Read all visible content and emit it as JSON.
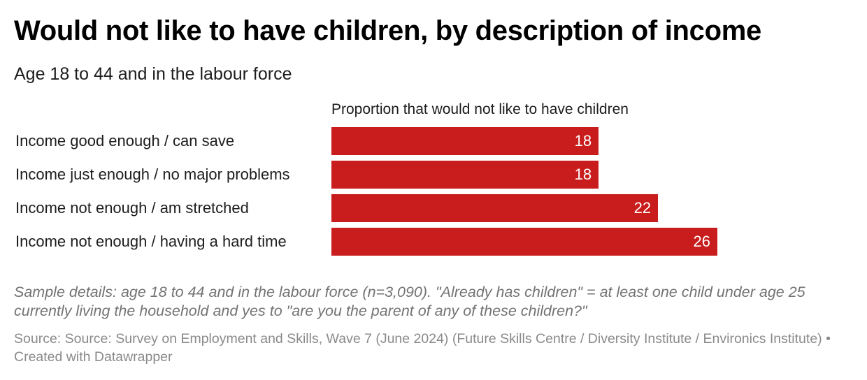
{
  "title": "Would not like to have children, by description of income",
  "subtitle": "Age 18 to 44 and in the labour force",
  "chart_data": {
    "type": "bar",
    "orientation": "horizontal",
    "column_header": "Proportion that would not like to have children",
    "categories": [
      "Income good enough / can save",
      "Income just enough / no major problems",
      "Income not enough / am stretched",
      "Income not enough / having a hard time"
    ],
    "values": [
      18,
      18,
      22,
      26
    ],
    "value_labels": [
      "18",
      "18",
      "22",
      "26"
    ],
    "xlim": [
      0,
      26
    ],
    "bar_color": "#c91c1c",
    "grid": false
  },
  "notes": "Sample details: age 18 to 44 and in the labour force (n=3,090). \"Already has children\" = at least one child under age 25 currently living the household and yes to \"are you the parent of any of these children?\"",
  "source": "Source: Source: Survey on Employment and Skills, Wave 7 (June 2024) (Future Skills Centre / Diversity Institute / Environics Institute) • Created with Datawrapper"
}
